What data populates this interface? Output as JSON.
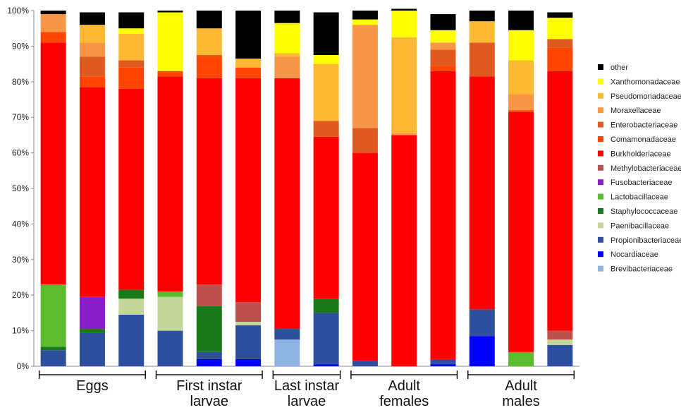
{
  "chart_data": {
    "type": "bar",
    "stacked": true,
    "ylim": [
      0,
      100
    ],
    "yticks": [
      "0%",
      "10%",
      "20%",
      "30%",
      "40%",
      "50%",
      "60%",
      "70%",
      "80%",
      "90%",
      "100%"
    ],
    "legend_position": "right",
    "grid": false,
    "groups": [
      {
        "label_lines": [
          "Eggs"
        ],
        "bars": [
          0,
          1,
          2
        ]
      },
      {
        "label_lines": [
          "First instar",
          "larvae"
        ],
        "bars": [
          3,
          4,
          5
        ]
      },
      {
        "label_lines": [
          "Last instar",
          "larvae"
        ],
        "bars": [
          6,
          7
        ]
      },
      {
        "label_lines": [
          "Adult",
          "females"
        ],
        "bars": [
          8,
          9,
          10
        ]
      },
      {
        "label_lines": [
          "Adult",
          "males"
        ],
        "bars": [
          11,
          12,
          13
        ]
      }
    ],
    "series": [
      {
        "name": "Brevibacteriaceae",
        "color": "#8DB4E2",
        "values": [
          0,
          0,
          0,
          0,
          0,
          0,
          7.5,
          0,
          0,
          0,
          0,
          0,
          0,
          0
        ]
      },
      {
        "name": "Nocardiaceae",
        "color": "#0000FF",
        "values": [
          0,
          0,
          0,
          0,
          2,
          2,
          0,
          0.5,
          0,
          0,
          0.5,
          8.5,
          0,
          0
        ]
      },
      {
        "name": "Propionibacteriaceae",
        "color": "#2E4F9E",
        "values": [
          4.5,
          9.5,
          14.5,
          10,
          2,
          9.5,
          3,
          14.5,
          1.5,
          0,
          1.5,
          7.5,
          0,
          6
        ]
      },
      {
        "name": "Paenibacillaceae",
        "color": "#C4D79B",
        "values": [
          0,
          0,
          4.5,
          9.5,
          0,
          1,
          0,
          0,
          0,
          0,
          0,
          0,
          0,
          1.5
        ]
      },
      {
        "name": "Staphylococcaceae",
        "color": "#1A7A1A",
        "values": [
          1,
          1,
          2.5,
          0,
          13,
          0,
          0,
          4,
          0,
          0,
          0,
          0,
          0,
          0
        ]
      },
      {
        "name": "Lactobacillaceae",
        "color": "#5BBD2E",
        "values": [
          17.5,
          0,
          0,
          1.5,
          0,
          0,
          0,
          0,
          0,
          0,
          0,
          0,
          4,
          0
        ]
      },
      {
        "name": "Fusobacteriaceae",
        "color": "#8B1ECC",
        "values": [
          0,
          9,
          0,
          0,
          0,
          0,
          0,
          0,
          0,
          0,
          0,
          0,
          0,
          0
        ]
      },
      {
        "name": "Methylobacteriaceae",
        "color": "#C0504D",
        "values": [
          0,
          0,
          0,
          0,
          6,
          5.5,
          0,
          0,
          0,
          0,
          0,
          0,
          0,
          2.5
        ]
      },
      {
        "name": "Burkholderiaceae",
        "color": "#FF0000",
        "values": [
          68,
          59,
          56.5,
          60.5,
          58,
          63,
          70.5,
          45.5,
          58.5,
          65,
          81,
          65.5,
          67.5,
          73
        ]
      },
      {
        "name": "Comamonadaceae",
        "color": "#FF4500",
        "values": [
          3,
          3,
          6,
          1.5,
          6,
          3,
          0,
          0,
          0,
          0,
          1.5,
          0,
          0.5,
          6.5
        ]
      },
      {
        "name": "Enterobacteriaceae",
        "color": "#E0591E",
        "values": [
          0,
          5.5,
          2,
          0,
          0.5,
          0,
          0,
          4.5,
          7,
          0,
          4.5,
          9.5,
          0,
          2.5
        ]
      },
      {
        "name": "Moraxellaceae",
        "color": "#F79646",
        "values": [
          5,
          4,
          0,
          0,
          0,
          0,
          6,
          0,
          29,
          0.5,
          2,
          0,
          4.5,
          0
        ]
      },
      {
        "name": "Pseudomonadaceae",
        "color": "#FDB933",
        "values": [
          0,
          5,
          7.5,
          0,
          7.5,
          2.5,
          1,
          16,
          0,
          27,
          0,
          6,
          9.5,
          0
        ]
      },
      {
        "name": "Xanthomonadaceae",
        "color": "#FFFF00",
        "values": [
          0,
          0,
          1.5,
          16.5,
          0,
          0,
          8.5,
          2.5,
          1.5,
          7.5,
          3.5,
          0,
          8.5,
          6
        ]
      },
      {
        "name": "other",
        "color": "#000000",
        "values": [
          1,
          3.5,
          4.5,
          0.5,
          5,
          13.5,
          3.5,
          12,
          2.5,
          0.5,
          4.5,
          3,
          5.5,
          1.5
        ]
      }
    ]
  }
}
